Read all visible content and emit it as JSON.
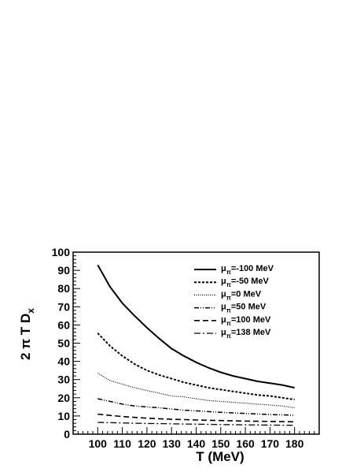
{
  "chart_data": {
    "type": "line",
    "xlabel": "T (MeV)",
    "ylabel_main": "2 π T D",
    "ylabel_sub": "x",
    "xlim": [
      90,
      190
    ],
    "ylim": [
      0,
      100
    ],
    "x_ticks": [
      100,
      110,
      120,
      130,
      140,
      150,
      160,
      170,
      180
    ],
    "y_ticks": [
      0,
      10,
      20,
      30,
      40,
      50,
      60,
      70,
      80,
      90,
      100
    ],
    "grid": false,
    "legend_position": "top-right",
    "x": [
      100,
      105,
      110,
      115,
      120,
      125,
      130,
      135,
      140,
      145,
      150,
      155,
      160,
      165,
      170,
      175,
      180
    ],
    "series": [
      {
        "symbol": "μ",
        "subscript": "π",
        "name": "=-100 MeV",
        "dash": "solid",
        "values": [
          93,
          81,
          72,
          65,
          58.5,
          52.5,
          47,
          43,
          39.5,
          36.5,
          34,
          32,
          30.5,
          29,
          28,
          27,
          25.5
        ]
      },
      {
        "symbol": "μ",
        "subscript": "π",
        "name": "=-50 MeV",
        "dash": "dashed-short",
        "values": [
          55.5,
          48.5,
          43,
          38.5,
          35,
          32.5,
          30.5,
          28.5,
          27,
          25.5,
          24.5,
          23.5,
          22.5,
          21.5,
          21,
          20,
          19
        ]
      },
      {
        "symbol": "μ",
        "subscript": "π",
        "name": "=0 MeV",
        "dash": "dotted",
        "values": [
          33.5,
          29.5,
          27.5,
          25.5,
          24,
          22.5,
          21,
          20.5,
          19.5,
          18.5,
          18,
          17.5,
          17,
          16.5,
          16,
          15.5,
          14.5
        ]
      },
      {
        "symbol": "μ",
        "subscript": "π",
        "name": "=50 MeV",
        "dash": "dash-dot-dot",
        "values": [
          19.5,
          18,
          16.5,
          15.5,
          15,
          14.5,
          13.8,
          13.2,
          12.8,
          12.4,
          12,
          11.7,
          11.4,
          11.1,
          10.8,
          10.6,
          10.4
        ]
      },
      {
        "symbol": "μ",
        "subscript": "π",
        "name": "=100 MeV",
        "dash": "dashed-long",
        "values": [
          11,
          10.3,
          9.7,
          9.2,
          8.8,
          8.5,
          8.2,
          8,
          7.8,
          7.6,
          7.5,
          7.3,
          7.2,
          7.1,
          7,
          6.9,
          6.8
        ]
      },
      {
        "symbol": "μ",
        "subscript": "π",
        "name": "=138 MeV",
        "dash": "dash-dot",
        "values": [
          6.5,
          6.3,
          6.2,
          6,
          5.9,
          5.8,
          5.7,
          5.6,
          5.5,
          5.4,
          5.3,
          5.2,
          5.1,
          5.05,
          5,
          4.95,
          4.9
        ]
      }
    ]
  }
}
